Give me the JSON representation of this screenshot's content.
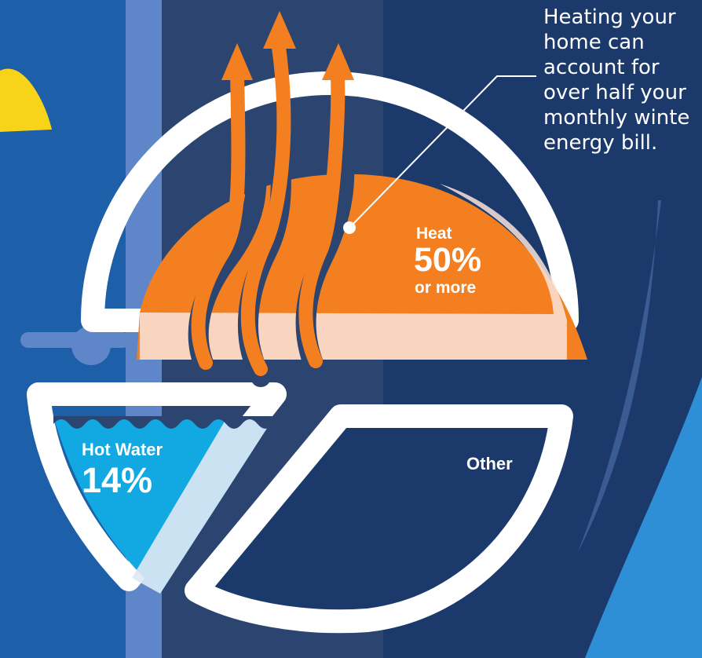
{
  "colors": {
    "background": "#1b3a6b",
    "left_panel": "#1d5fa8",
    "pipe": "#5f86c8",
    "middle_panel": "#2c4470",
    "sun": "#f7d31a",
    "heat": "#f47f20",
    "heat_tint": "#f9e4dc",
    "hot_water": "#12a8e2",
    "hot_water_tint": "#dfe8f3",
    "other": "#1b3a6b",
    "slice_outline": "#ffffff",
    "glow": "#2f8fd6",
    "arrow_groove": "#2c4470"
  },
  "annotation": {
    "lines": [
      "Heating your",
      "home can",
      "account for",
      "over half your",
      "monthly winte",
      "energy bill."
    ]
  },
  "chart_data": {
    "type": "pie",
    "slices": [
      {
        "id": "heat",
        "category": "Heat",
        "value": 50,
        "value_label": "50%",
        "note": "or more",
        "color": "#f47f20"
      },
      {
        "id": "hot_water",
        "category": "Hot Water",
        "value": 14,
        "value_label": "14%",
        "note": "",
        "color": "#12a8e2"
      },
      {
        "id": "other",
        "category": "Other",
        "value": 36,
        "value_label": "",
        "note": "",
        "color": "#1b3a6b"
      }
    ],
    "icons": [
      "heat-rising-arrows-icon",
      "water-waves-icon",
      "sun-icon",
      "pipe-icon"
    ]
  }
}
